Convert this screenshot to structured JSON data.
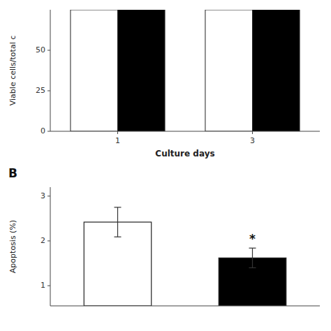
{
  "chart_data": [
    {
      "type": "bar",
      "xlabel": "Culture days",
      "ylabel": "Viable cells/total c",
      "categories": [
        "1",
        "3"
      ],
      "series": [
        {
          "color": "white",
          "values": [
            75,
            75
          ]
        },
        {
          "color": "black",
          "values": [
            75,
            75
          ]
        }
      ],
      "ylim": [
        0,
        75
      ],
      "yticks": [
        0,
        25,
        50
      ],
      "grid": false
    },
    {
      "type": "bar",
      "title": "B",
      "ylabel": "Apoptosis (%)",
      "categories": [
        null,
        null
      ],
      "values": [
        2.42,
        1.62
      ],
      "errors": [
        0.33,
        0.22
      ],
      "colors": [
        "white",
        "black"
      ],
      "ylim": [
        0.55,
        3.2
      ],
      "yticks": [
        1,
        2,
        3
      ],
      "tick_labels": "y",
      "grid": false,
      "annotations": [
        {
          "text": "*",
          "x": 1,
          "y": 1.95
        }
      ]
    }
  ]
}
